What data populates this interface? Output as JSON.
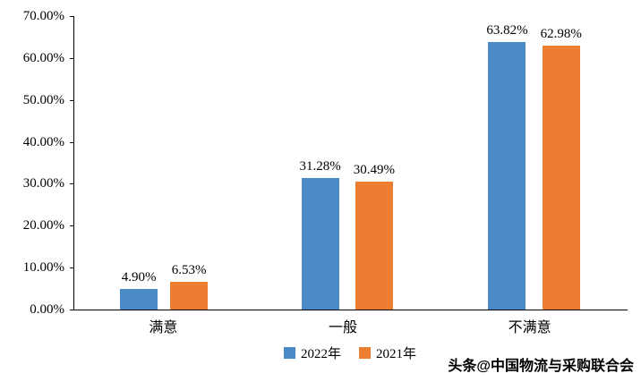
{
  "chart_data": {
    "type": "bar",
    "title": "",
    "xlabel": "",
    "ylabel": "",
    "categories": [
      "满意",
      "一般",
      "不满意"
    ],
    "series": [
      {
        "name": "2022年",
        "color": "#4A8AC6",
        "values": [
          4.9,
          31.28,
          63.82
        ],
        "labels": [
          "4.90%",
          "31.28%",
          "63.82%"
        ]
      },
      {
        "name": "2021年",
        "color": "#ED7D31",
        "values": [
          6.53,
          30.49,
          62.98
        ],
        "labels": [
          "6.53%",
          "30.49%",
          "62.98%"
        ]
      }
    ],
    "ylim": [
      0,
      70
    ],
    "y_ticks": [
      "0.00%",
      "10.00%",
      "20.00%",
      "30.00%",
      "40.00%",
      "50.00%",
      "60.00%",
      "70.00%"
    ],
    "grid": false,
    "legend_position": "bottom"
  },
  "watermark": "头条@中国物流与采购联合会"
}
